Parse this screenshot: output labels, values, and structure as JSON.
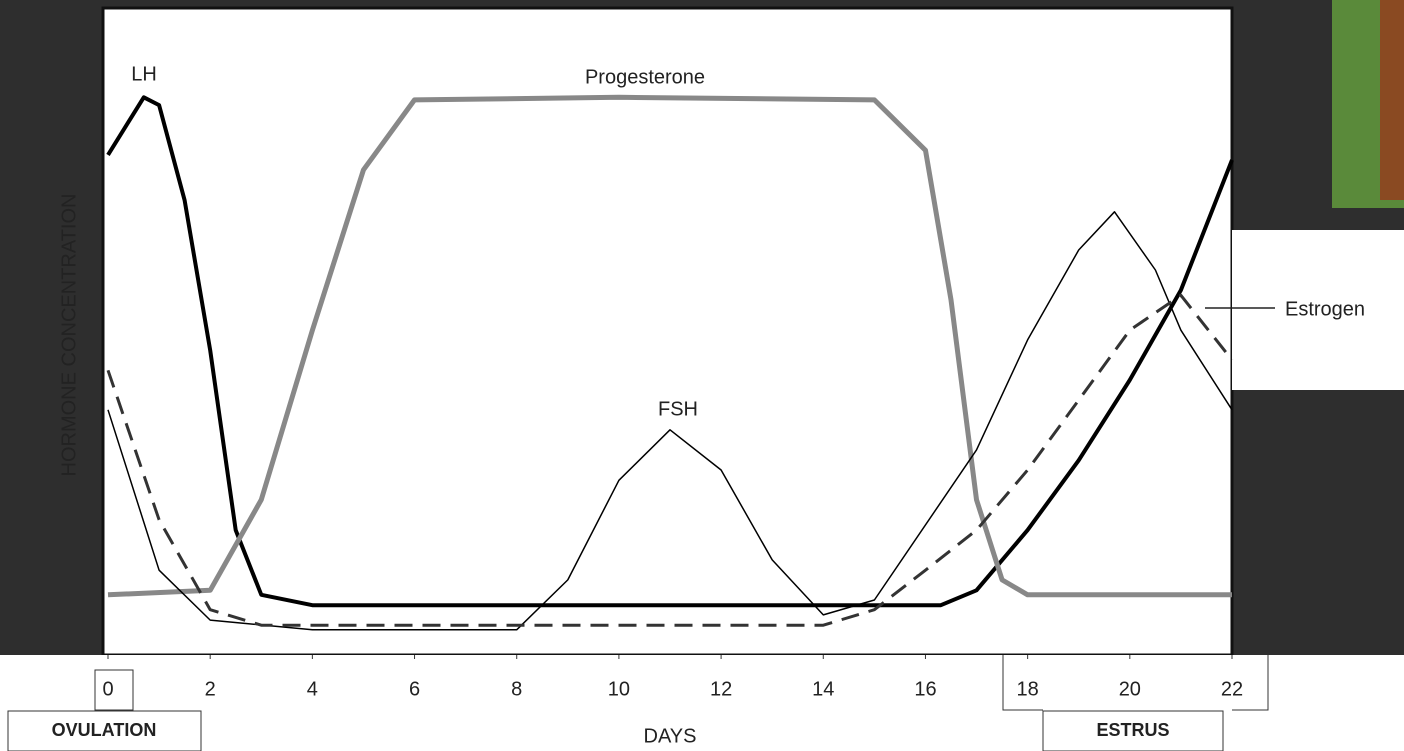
{
  "chart_data": {
    "type": "line",
    "y_label": "HORMONE CONCENTRATION",
    "x_label": "DAYS",
    "annotations": [
      "OVULATION",
      "ESTRUS"
    ],
    "xlim": [
      0,
      22
    ],
    "xticks": [
      0,
      2,
      4,
      6,
      8,
      10,
      12,
      14,
      16,
      18,
      20,
      22
    ],
    "ylim": [
      0,
      100
    ],
    "grid": false,
    "series": [
      {
        "name": "LH",
        "color": "#000000",
        "dash": false,
        "width": 4,
        "x": [
          0,
          0.7,
          1,
          1.5,
          2,
          2.5,
          3,
          4,
          16.3,
          17,
          18,
          19,
          20,
          21,
          22
        ],
        "values": [
          77.3,
          86.2,
          85,
          70.3,
          47.1,
          19.3,
          9.3,
          7.7,
          7.7,
          10,
          19.3,
          30.1,
          42.5,
          56.4,
          76.5
        ]
      },
      {
        "name": "Progesterone",
        "color": "#888888",
        "dash": false,
        "width": 5,
        "x": [
          0,
          2,
          3,
          4,
          5,
          6,
          10,
          15,
          16,
          16.5,
          17,
          17.5,
          18,
          22
        ],
        "values": [
          9.3,
          10,
          24,
          50.2,
          75,
          85.8,
          86.2,
          85.8,
          78,
          54.9,
          24,
          11.6,
          9.3,
          9.3
        ]
      },
      {
        "name": "FSH",
        "color": "#000000",
        "dash": false,
        "width": 1.5,
        "x": [
          0,
          1,
          2,
          4,
          8,
          9,
          10,
          11,
          12,
          13,
          14,
          15,
          17,
          18,
          19,
          19.7,
          20.5,
          21,
          22
        ],
        "values": [
          37.9,
          13.1,
          5.4,
          3.9,
          3.9,
          11.6,
          27,
          34.8,
          28.6,
          14.7,
          6.2,
          8.5,
          31.7,
          48.7,
          62.6,
          68.5,
          59.5,
          50.2,
          37.9
        ]
      },
      {
        "name": "Estrogen",
        "color": "#333333",
        "dash": true,
        "width": 3,
        "x": [
          0,
          1,
          2,
          3,
          14,
          15,
          16,
          17,
          18,
          19,
          20,
          21,
          22
        ],
        "values": [
          44,
          20.9,
          7,
          4.6,
          4.6,
          7,
          13.1,
          19.3,
          28.6,
          39.4,
          50.2,
          55.6,
          45.6
        ]
      }
    ]
  }
}
